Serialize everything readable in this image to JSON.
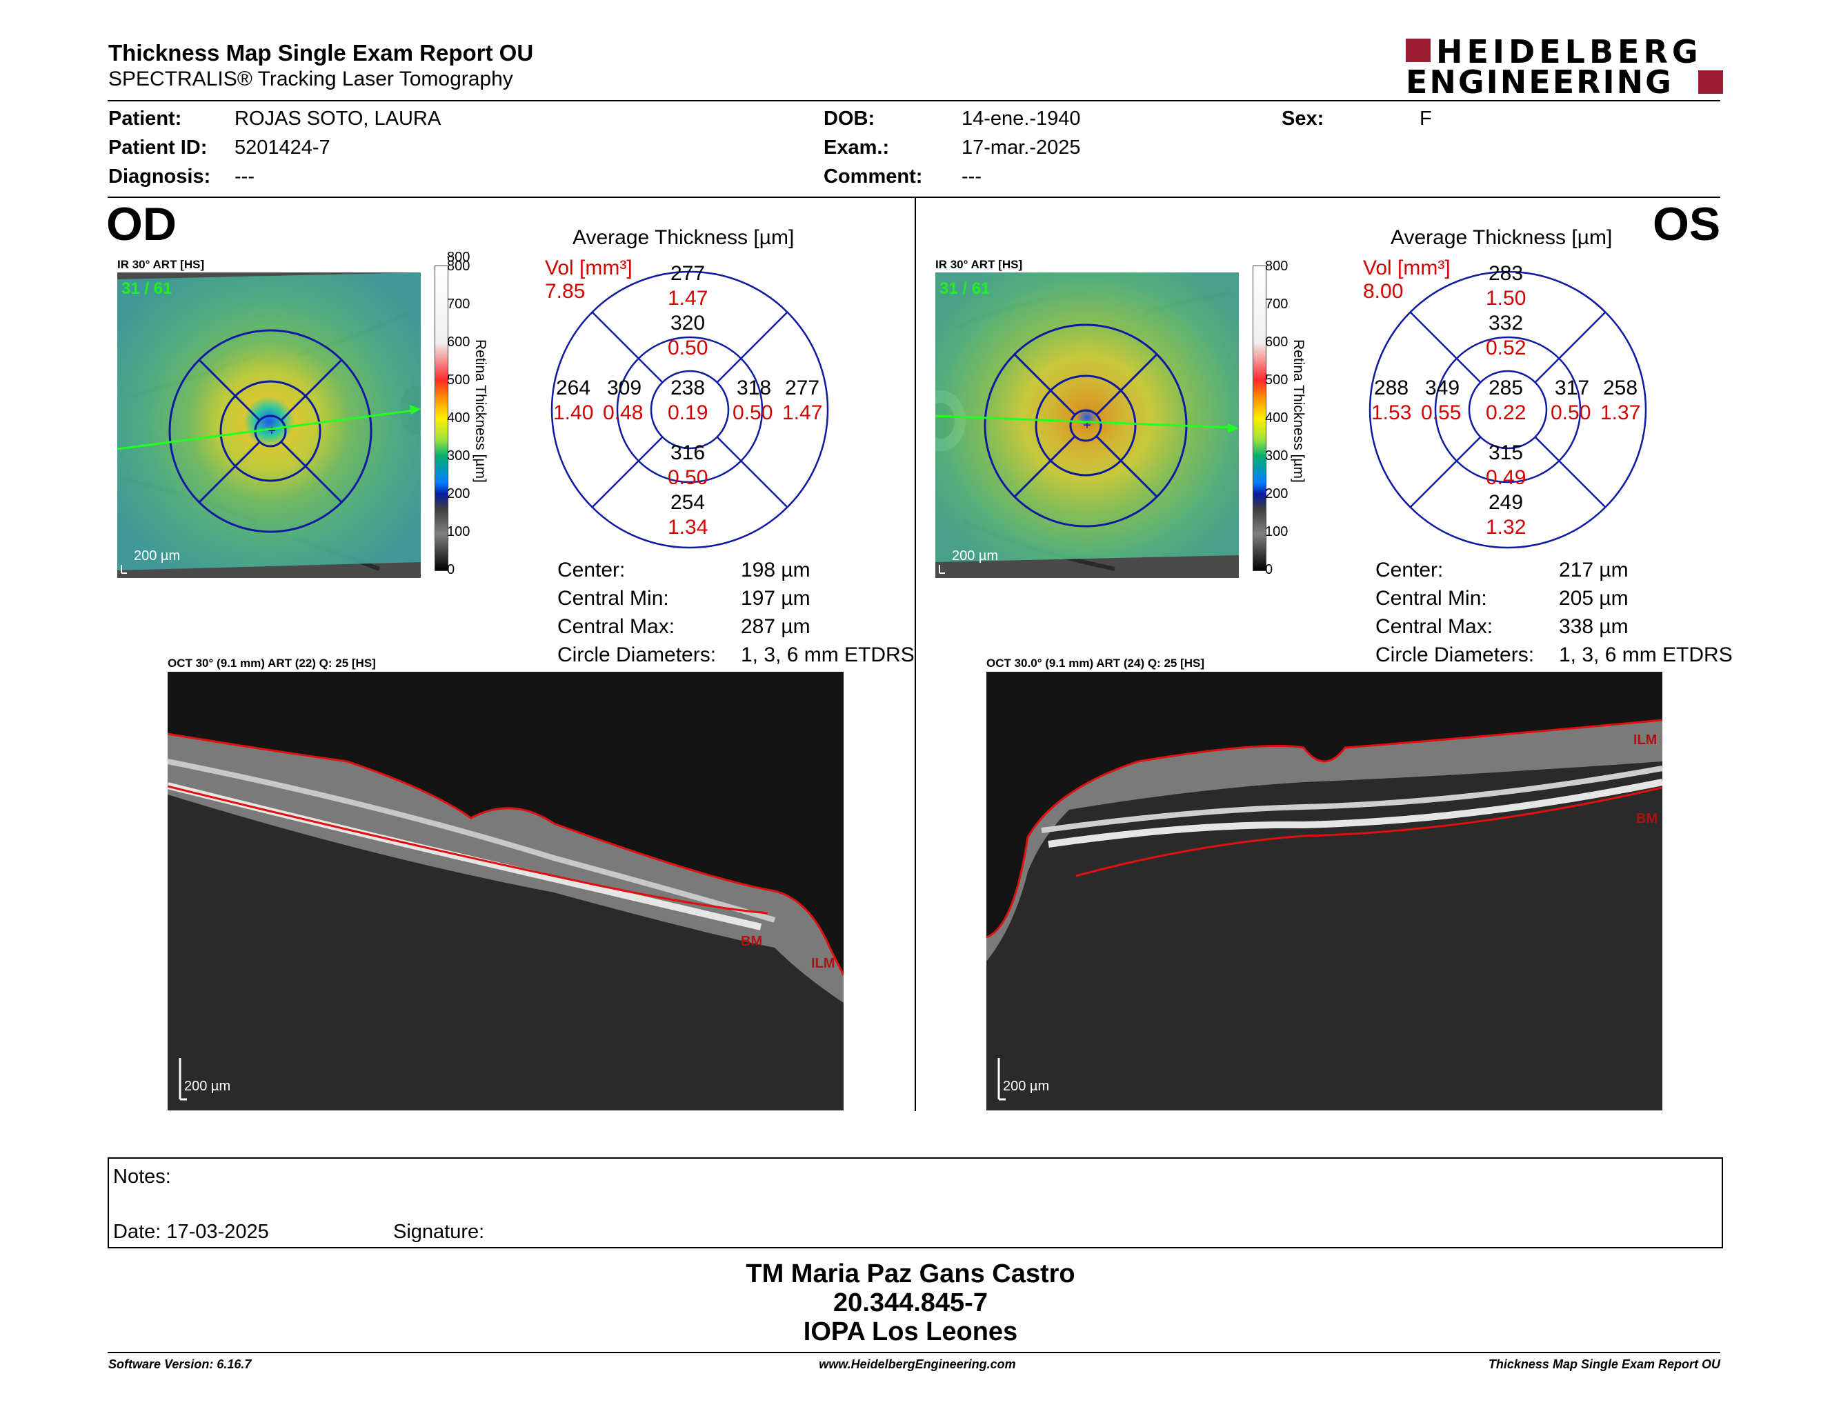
{
  "header": {
    "title": "Thickness Map Single Exam Report OU",
    "subtitle": "SPECTRALIS® Tracking Laser Tomography",
    "logo_line1": "HEIDELBERG",
    "logo_line2": "ENGINEERING",
    "brand_color": "#9b1b30"
  },
  "patient": {
    "patient_label": "Patient:",
    "patient_value": "ROJAS SOTO, LAURA",
    "id_label": "Patient ID:",
    "id_value": "5201424-7",
    "diag_label": "Diagnosis:",
    "diag_value": "---",
    "dob_label": "DOB:",
    "dob_value": "14-ene.-1940",
    "exam_label": "Exam.:",
    "exam_value": "17-mar.-2025",
    "comment_label": "Comment:",
    "comment_value": "---",
    "sex_label": "Sex:",
    "sex_value": "F"
  },
  "scale": {
    "ticks": [
      "800",
      "700",
      "600",
      "500",
      "400",
      "300",
      "200",
      "100",
      "0"
    ],
    "label": "Retina Thickness [µm]"
  },
  "od": {
    "eye": "OD",
    "ir_label": "IR 30° ART [HS]",
    "frame": "31 / 61",
    "scale_bar": "200 µm",
    "avg_title": "Average Thickness [µm]",
    "vol_label": "Vol [mm³]",
    "vol_total": "7.85",
    "grid": {
      "center": [
        "238",
        "0.19"
      ],
      "inner_sup": [
        "320",
        "0.50"
      ],
      "inner_inf": [
        "316",
        "0.50"
      ],
      "inner_left": [
        "309",
        "0.48"
      ],
      "inner_right": [
        "318",
        "0.50"
      ],
      "outer_sup": [
        "277",
        "1.47"
      ],
      "outer_inf": [
        "254",
        "1.34"
      ],
      "outer_left": [
        "264",
        "1.40"
      ],
      "outer_right": [
        "277",
        "1.47"
      ]
    },
    "stats": [
      {
        "label": "Center:",
        "value": "198 µm"
      },
      {
        "label": "Central Min:",
        "value": "197 µm"
      },
      {
        "label": "Central Max:",
        "value": "287 µm"
      },
      {
        "label": "Circle Diameters:",
        "value": "1, 3, 6 mm ETDRS"
      }
    ],
    "oct_label": "OCT 30° (9.1 mm) ART (22) Q: 25 [HS]",
    "oct_scale": "200 µm",
    "bm": "BM",
    "ilm": "ILM"
  },
  "os": {
    "eye": "OS",
    "ir_label": "IR 30° ART [HS]",
    "frame": "31 / 61",
    "scale_bar": "200 µm",
    "avg_title": "Average Thickness [µm]",
    "vol_label": "Vol [mm³]",
    "vol_total": "8.00",
    "grid": {
      "center": [
        "285",
        "0.22"
      ],
      "inner_sup": [
        "332",
        "0.52"
      ],
      "inner_inf": [
        "315",
        "0.49"
      ],
      "inner_left": [
        "349",
        "0.55"
      ],
      "inner_right": [
        "317",
        "0.50"
      ],
      "outer_sup": [
        "283",
        "1.50"
      ],
      "outer_inf": [
        "249",
        "1.32"
      ],
      "outer_left": [
        "288",
        "1.53"
      ],
      "outer_right": [
        "258",
        "1.37"
      ]
    },
    "stats": [
      {
        "label": "Center:",
        "value": "217 µm"
      },
      {
        "label": "Central Min:",
        "value": "205 µm"
      },
      {
        "label": "Central Max:",
        "value": "338 µm"
      },
      {
        "label": "Circle Diameters:",
        "value": "1, 3, 6 mm ETDRS"
      }
    ],
    "oct_label": "OCT 30.0° (9.1 mm) ART (24) Q: 25 [HS]",
    "oct_scale": "200 µm",
    "bm": "BM",
    "ilm": "ILM"
  },
  "notes": {
    "notes_label": "Notes:",
    "date_label": "Date: 17-03-2025",
    "signature_label": "Signature:"
  },
  "signer": {
    "name": "TM Maria Paz Gans Castro",
    "rut": "20.344.845-7",
    "clinic": "IOPA Los Leones"
  },
  "footer": {
    "left": "Software Version: 6.16.7",
    "center": "www.HeidelbergEngineering.com",
    "right": "Thickness Map Single Exam Report OU"
  }
}
